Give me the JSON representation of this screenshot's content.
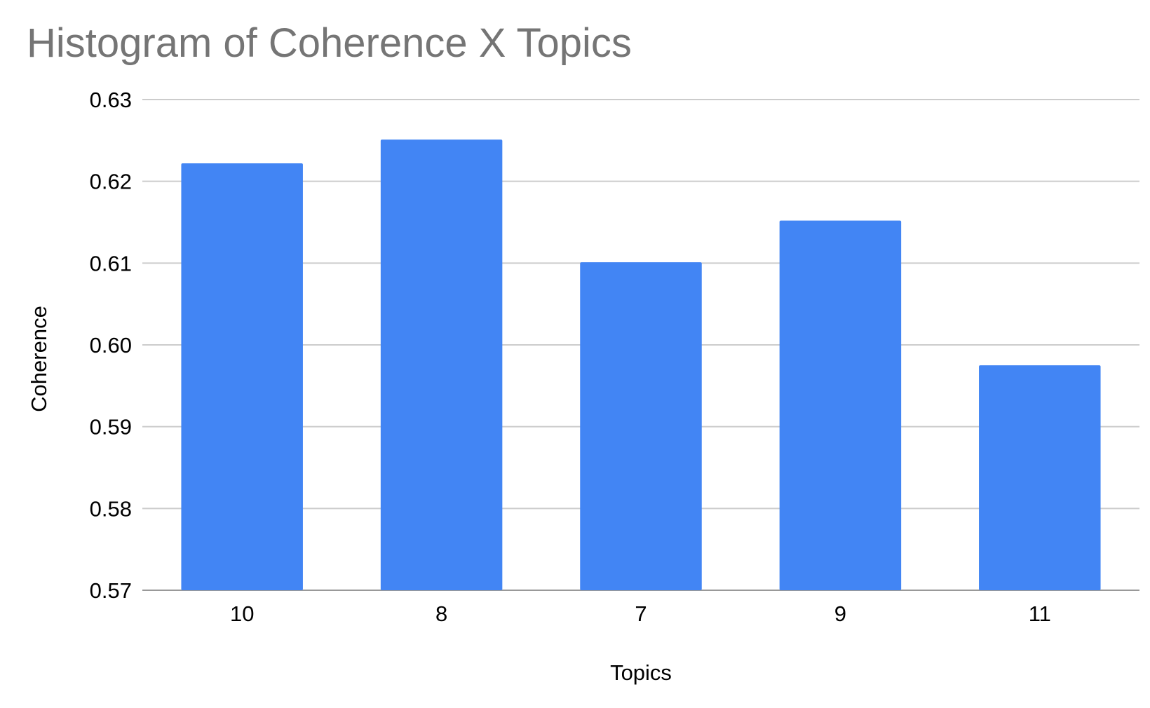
{
  "chart_data": {
    "type": "bar",
    "title": "Histogram of Coherence X Topics",
    "xlabel": "Topics",
    "ylabel": "Coherence",
    "categories": [
      "10",
      "8",
      "7",
      "9",
      "11"
    ],
    "values": [
      0.6222,
      0.6251,
      0.6101,
      0.6152,
      0.5975
    ],
    "ylim": [
      0.57,
      0.63
    ],
    "yticks": [
      "0.57",
      "0.58",
      "0.59",
      "0.60",
      "0.61",
      "0.62",
      "0.63"
    ],
    "grid": true,
    "legend": "none",
    "bar_color": "#4285f4"
  }
}
